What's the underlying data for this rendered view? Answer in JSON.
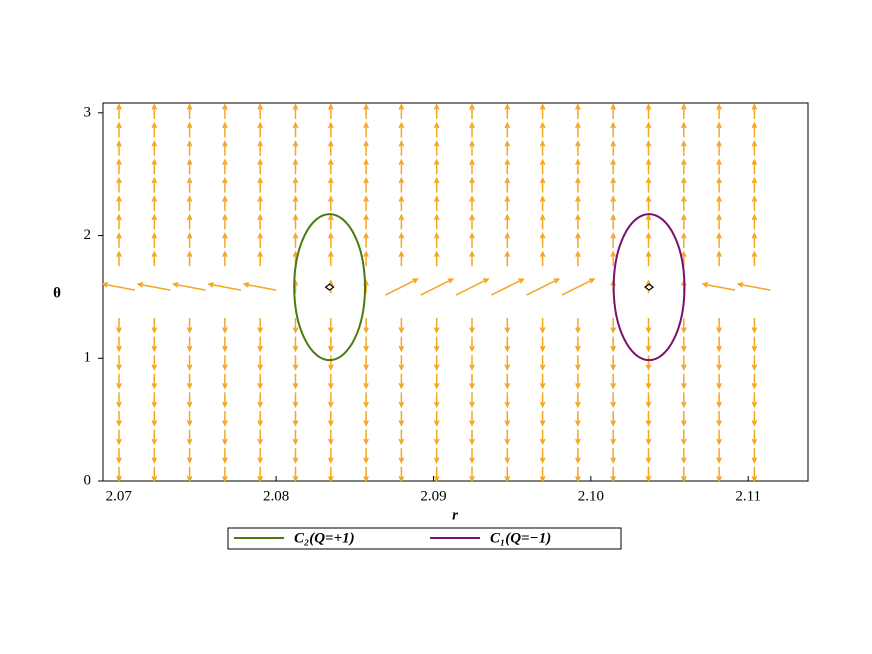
{
  "chart_data": {
    "type": "vector-field",
    "x_label": "r",
    "y_label": "θ",
    "xlim": [
      2.069,
      2.1138
    ],
    "ylim": [
      0,
      3.08
    ],
    "xticks": [
      2.07,
      2.08,
      2.09,
      {
        "value": 2.1,
        "label": "2.10"
      },
      2.11
    ],
    "yticks": [
      0,
      1,
      2,
      3
    ],
    "field_color": "#f5a623",
    "series": [
      {
        "name": "C₁(Q=−1)",
        "color": "#7b0f6e",
        "center": [
          2.1037,
          1.58
        ],
        "radii": [
          0.00225,
          0.595
        ]
      },
      {
        "name": "C₂(Q=+1)",
        "color": "#4a7a10",
        "center": [
          2.0834,
          1.58
        ],
        "radii": [
          0.00225,
          0.595
        ]
      }
    ]
  }
}
